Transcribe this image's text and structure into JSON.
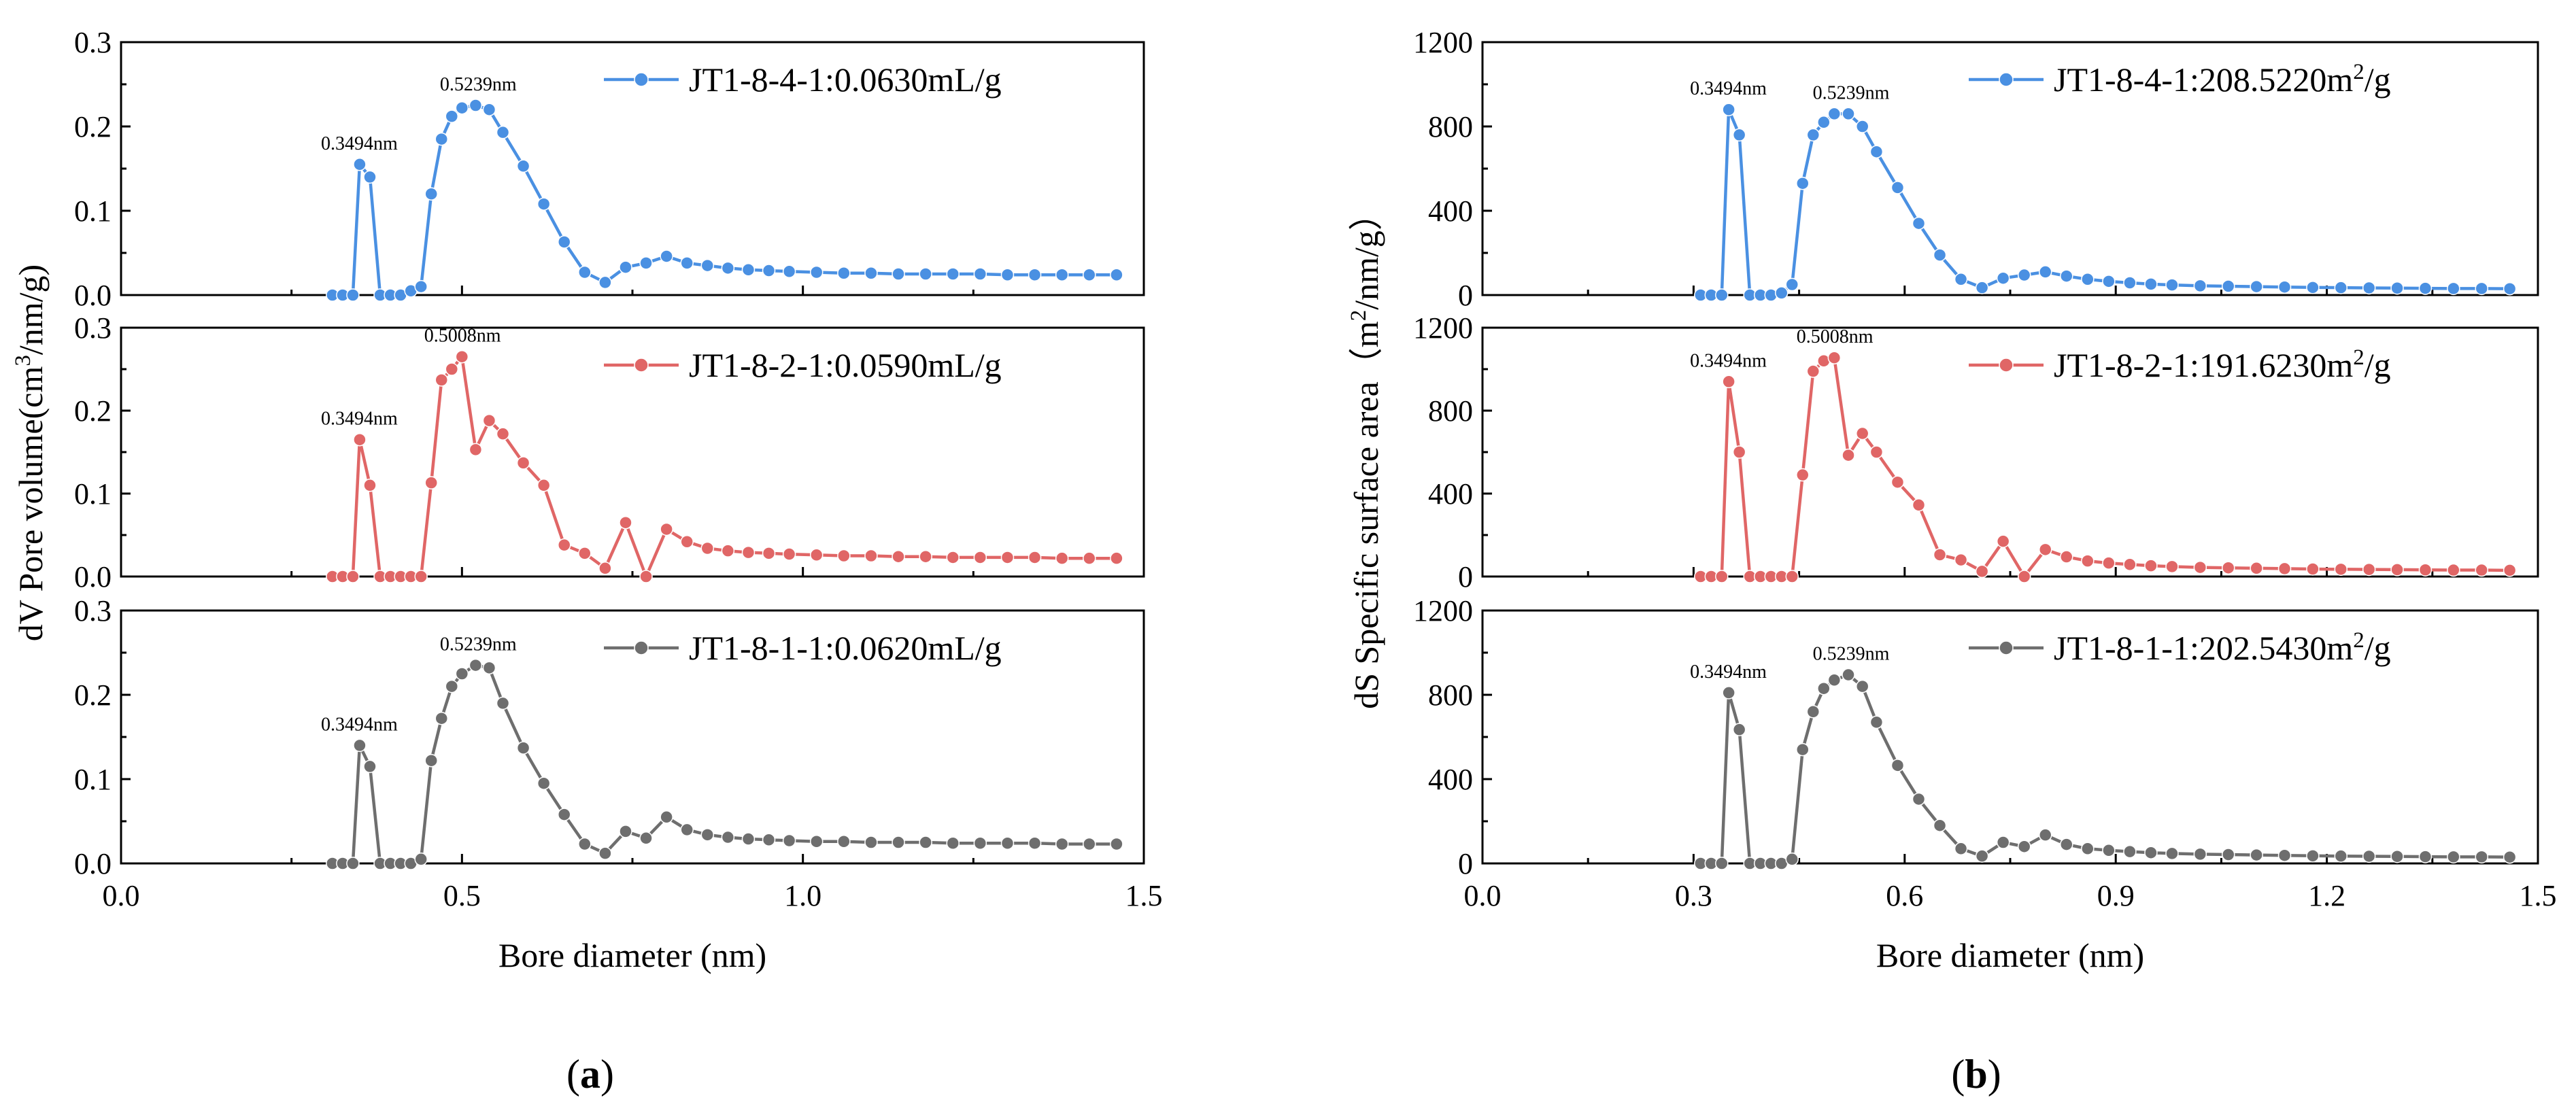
{
  "colors": {
    "blue": "#4a90e2",
    "red": "#e06666",
    "gray": "#6e6e6e"
  },
  "chart_data": [
    {
      "panel": "a",
      "panel_label": "(a)",
      "type": "line",
      "xlabel": "Bore diameter (nm)",
      "ylabel": "dV Pore volume(cm³/nm/g)",
      "xlim": [
        0,
        1.5
      ],
      "x_ticks": [
        "0.0",
        "0.5",
        "1.0",
        "1.5"
      ],
      "subplots": [
        {
          "ylim": [
            0,
            0.3
          ],
          "y_ticks": [
            "0.0",
            "0.1",
            "0.2",
            "0.3"
          ],
          "legend": "JT1-8-4-1:0.0630mL/g",
          "color_key": "blue",
          "annotations": [
            {
              "x": 0.3494,
              "y": 0.155,
              "text": "0.3494nm"
            },
            {
              "x": 0.5239,
              "y": 0.225,
              "text": "0.5239nm"
            }
          ],
          "x": [
            0.31,
            0.325,
            0.34,
            0.35,
            0.365,
            0.38,
            0.395,
            0.41,
            0.425,
            0.44,
            0.455,
            0.47,
            0.485,
            0.5,
            0.52,
            0.54,
            0.56,
            0.59,
            0.62,
            0.65,
            0.68,
            0.71,
            0.74,
            0.77,
            0.8,
            0.83,
            0.86,
            0.89,
            0.92,
            0.95,
            0.98,
            1.02,
            1.06,
            1.1,
            1.14,
            1.18,
            1.22,
            1.26,
            1.3,
            1.34,
            1.38,
            1.42,
            1.46
          ],
          "y": [
            0,
            0,
            0,
            0.155,
            0.14,
            0,
            0,
            0,
            0.005,
            0.01,
            0.12,
            0.185,
            0.212,
            0.222,
            0.225,
            0.22,
            0.193,
            0.153,
            0.108,
            0.063,
            0.027,
            0.015,
            0.033,
            0.038,
            0.046,
            0.038,
            0.035,
            0.032,
            0.03,
            0.029,
            0.028,
            0.027,
            0.026,
            0.026,
            0.025,
            0.025,
            0.025,
            0.025,
            0.024,
            0.024,
            0.024,
            0.024,
            0.024
          ]
        },
        {
          "ylim": [
            0,
            0.3
          ],
          "y_ticks": [
            "0.0",
            "0.1",
            "0.2",
            "0.3"
          ],
          "legend": "JT1-8-2-1:0.0590mL/g",
          "color_key": "red",
          "annotations": [
            {
              "x": 0.3494,
              "y": 0.165,
              "text": "0.3494nm"
            },
            {
              "x": 0.5008,
              "y": 0.265,
              "text": "0.5008nm"
            }
          ],
          "x": [
            0.31,
            0.325,
            0.34,
            0.35,
            0.365,
            0.38,
            0.395,
            0.41,
            0.425,
            0.44,
            0.455,
            0.47,
            0.485,
            0.5,
            0.52,
            0.54,
            0.56,
            0.59,
            0.62,
            0.65,
            0.68,
            0.71,
            0.74,
            0.77,
            0.8,
            0.83,
            0.86,
            0.89,
            0.92,
            0.95,
            0.98,
            1.02,
            1.06,
            1.1,
            1.14,
            1.18,
            1.22,
            1.26,
            1.3,
            1.34,
            1.38,
            1.42,
            1.46
          ],
          "y": [
            0,
            0,
            0,
            0.165,
            0.11,
            0,
            0,
            0,
            0,
            0,
            0.113,
            0.237,
            0.25,
            0.265,
            0.153,
            0.188,
            0.172,
            0.137,
            0.11,
            0.038,
            0.028,
            0.01,
            0.065,
            0.0,
            0.057,
            0.042,
            0.034,
            0.031,
            0.029,
            0.028,
            0.027,
            0.026,
            0.025,
            0.025,
            0.024,
            0.024,
            0.023,
            0.023,
            0.023,
            0.023,
            0.022,
            0.022,
            0.022
          ]
        },
        {
          "ylim": [
            0,
            0.3
          ],
          "y_ticks": [
            "0.0",
            "0.1",
            "0.2",
            "0.3"
          ],
          "legend": "JT1-8-1-1:0.0620mL/g",
          "color_key": "gray",
          "annotations": [
            {
              "x": 0.3494,
              "y": 0.14,
              "text": "0.3494nm"
            },
            {
              "x": 0.5239,
              "y": 0.235,
              "text": "0.5239nm"
            }
          ],
          "x": [
            0.31,
            0.325,
            0.34,
            0.35,
            0.365,
            0.38,
            0.395,
            0.41,
            0.425,
            0.44,
            0.455,
            0.47,
            0.485,
            0.5,
            0.52,
            0.54,
            0.56,
            0.59,
            0.62,
            0.65,
            0.68,
            0.71,
            0.74,
            0.77,
            0.8,
            0.83,
            0.86,
            0.89,
            0.92,
            0.95,
            0.98,
            1.02,
            1.06,
            1.1,
            1.14,
            1.18,
            1.22,
            1.26,
            1.3,
            1.34,
            1.38,
            1.42,
            1.46
          ],
          "y": [
            0,
            0,
            0,
            0.14,
            0.115,
            0,
            0,
            0,
            0,
            0.005,
            0.122,
            0.172,
            0.21,
            0.225,
            0.235,
            0.232,
            0.19,
            0.137,
            0.095,
            0.058,
            0.023,
            0.012,
            0.038,
            0.03,
            0.055,
            0.04,
            0.034,
            0.031,
            0.029,
            0.028,
            0.027,
            0.026,
            0.026,
            0.025,
            0.025,
            0.025,
            0.024,
            0.024,
            0.024,
            0.024,
            0.023,
            0.023,
            0.023
          ]
        }
      ]
    },
    {
      "panel": "b",
      "panel_label": "(b)",
      "type": "line",
      "xlabel": "Bore diameter (nm)",
      "ylabel": "dS Specific surface area（m²/nm/g）",
      "xlim": [
        0,
        1.5
      ],
      "x_ticks": [
        "0.0",
        "0.3",
        "0.6",
        "0.9",
        "1.2",
        "1.5"
      ],
      "subplots": [
        {
          "ylim": [
            0,
            1200
          ],
          "y_ticks": [
            "0",
            "400",
            "800",
            "1200"
          ],
          "legend": "JT1-8-4-1:208.5220m²/g",
          "color_key": "blue",
          "annotations": [
            {
              "x": 0.3494,
              "y": 880,
              "text": "0.3494nm"
            },
            {
              "x": 0.5239,
              "y": 860,
              "text": "0.5239nm"
            }
          ],
          "x": [
            0.31,
            0.325,
            0.34,
            0.35,
            0.365,
            0.38,
            0.395,
            0.41,
            0.425,
            0.44,
            0.455,
            0.47,
            0.485,
            0.5,
            0.52,
            0.54,
            0.56,
            0.59,
            0.62,
            0.65,
            0.68,
            0.71,
            0.74,
            0.77,
            0.8,
            0.83,
            0.86,
            0.89,
            0.92,
            0.95,
            0.98,
            1.02,
            1.06,
            1.1,
            1.14,
            1.18,
            1.22,
            1.26,
            1.3,
            1.34,
            1.38,
            1.42,
            1.46
          ],
          "y": [
            0,
            0,
            0,
            880,
            760,
            0,
            0,
            0,
            10,
            50,
            530,
            760,
            820,
            860,
            860,
            800,
            680,
            510,
            340,
            190,
            75,
            35,
            80,
            95,
            110,
            90,
            75,
            65,
            58,
            52,
            48,
            44,
            42,
            40,
            38,
            36,
            35,
            34,
            33,
            32,
            31,
            31,
            30
          ]
        },
        {
          "ylim": [
            0,
            1200
          ],
          "y_ticks": [
            "0",
            "400",
            "800",
            "1200"
          ],
          "legend": "JT1-8-2-1:191.6230m²/g",
          "color_key": "red",
          "annotations": [
            {
              "x": 0.3494,
              "y": 940,
              "text": "0.3494nm"
            },
            {
              "x": 0.5008,
              "y": 1055,
              "text": "0.5008nm"
            }
          ],
          "x": [
            0.31,
            0.325,
            0.34,
            0.35,
            0.365,
            0.38,
            0.395,
            0.41,
            0.425,
            0.44,
            0.455,
            0.47,
            0.485,
            0.5,
            0.52,
            0.54,
            0.56,
            0.59,
            0.62,
            0.65,
            0.68,
            0.71,
            0.74,
            0.77,
            0.8,
            0.83,
            0.86,
            0.89,
            0.92,
            0.95,
            0.98,
            1.02,
            1.06,
            1.1,
            1.14,
            1.18,
            1.22,
            1.26,
            1.3,
            1.34,
            1.38,
            1.42,
            1.46
          ],
          "y": [
            0,
            0,
            0,
            940,
            600,
            0,
            0,
            0,
            0,
            0,
            490,
            990,
            1040,
            1055,
            585,
            690,
            600,
            455,
            345,
            105,
            80,
            25,
            170,
            0,
            130,
            95,
            75,
            65,
            58,
            52,
            48,
            44,
            42,
            40,
            38,
            36,
            35,
            34,
            33,
            32,
            31,
            31,
            30
          ]
        },
        {
          "ylim": [
            0,
            1200
          ],
          "y_ticks": [
            "0",
            "400",
            "800",
            "1200"
          ],
          "legend": "JT1-8-1-1:202.5430m²/g",
          "color_key": "gray",
          "annotations": [
            {
              "x": 0.3494,
              "y": 810,
              "text": "0.3494nm"
            },
            {
              "x": 0.5239,
              "y": 895,
              "text": "0.5239nm"
            }
          ],
          "x": [
            0.31,
            0.325,
            0.34,
            0.35,
            0.365,
            0.38,
            0.395,
            0.41,
            0.425,
            0.44,
            0.455,
            0.47,
            0.485,
            0.5,
            0.52,
            0.54,
            0.56,
            0.59,
            0.62,
            0.65,
            0.68,
            0.71,
            0.74,
            0.77,
            0.8,
            0.83,
            0.86,
            0.89,
            0.92,
            0.95,
            0.98,
            1.02,
            1.06,
            1.1,
            1.14,
            1.18,
            1.22,
            1.26,
            1.3,
            1.34,
            1.38,
            1.42,
            1.46
          ],
          "y": [
            0,
            0,
            0,
            810,
            635,
            0,
            0,
            0,
            0,
            20,
            540,
            720,
            830,
            870,
            895,
            840,
            670,
            465,
            305,
            180,
            70,
            35,
            100,
            80,
            135,
            90,
            70,
            62,
            56,
            51,
            47,
            44,
            42,
            40,
            38,
            36,
            35,
            34,
            33,
            32,
            31,
            31,
            30
          ]
        }
      ]
    }
  ]
}
